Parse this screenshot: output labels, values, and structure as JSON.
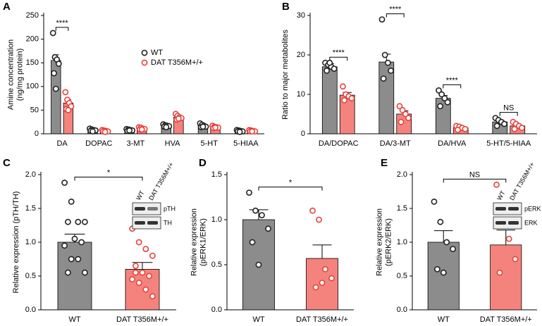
{
  "chart_data": [
    {
      "type": "bar",
      "panel": "A",
      "ylabel": [
        "Amine concentration",
        "(ng/mg protein)"
      ],
      "categories": [
        "DA",
        "DOPAC",
        "3-MT",
        "HVA",
        "5-HT",
        "5-HIAA"
      ],
      "series": [
        {
          "name": "WT",
          "color": "#8c8c8c",
          "values": [
            155,
            8,
            8,
            17,
            17,
            6
          ],
          "errors": [
            12,
            1,
            1,
            2,
            2,
            1
          ],
          "points": [
            [
              213,
              162,
              157,
              148,
              128,
              95
            ],
            [
              11,
              9,
              8,
              7,
              6,
              5
            ],
            [
              10,
              9,
              8,
              7,
              6,
              7
            ],
            [
              20,
              18,
              17,
              16,
              15,
              14
            ],
            [
              22,
              19,
              17,
              15,
              14,
              15
            ],
            [
              8,
              7,
              6,
              5,
              5,
              4
            ]
          ]
        },
        {
          "name": "DAT T356M+/+",
          "color": "#f4837d",
          "values": [
            65,
            6,
            11,
            35,
            14,
            6
          ],
          "errors": [
            7,
            1,
            1,
            3,
            1,
            1
          ],
          "points": [
            [
              88,
              72,
              65,
              58,
              52,
              50
            ],
            [
              8,
              7,
              6,
              5,
              5,
              4
            ],
            [
              14,
              13,
              11,
              10,
              9,
              9
            ],
            [
              42,
              38,
              35,
              33,
              30,
              32
            ],
            [
              17,
              15,
              14,
              13,
              12,
              13
            ],
            [
              8,
              7,
              6,
              5,
              5,
              5
            ]
          ]
        }
      ],
      "annotations": [
        "****"
      ],
      "ylim": [
        0,
        250
      ],
      "yticks": [
        0,
        50,
        100,
        150,
        200,
        250
      ],
      "legend": true
    },
    {
      "type": "bar",
      "panel": "B",
      "ylabel": [
        "Ratio to major metabolites"
      ],
      "categories": [
        "DA/DOPAC",
        "DA/3-MT",
        "DA/HVA",
        "5-HT/5-HIAA"
      ],
      "series": [
        {
          "name": "WT",
          "color": "#8c8c8c",
          "values": [
            17,
            18.2,
            9,
            3
          ],
          "errors": [
            0.8,
            2,
            0.7,
            0.4
          ],
          "points": [
            [
              18,
              17.5,
              17,
              16.5,
              16,
              18
            ],
            [
              29,
              20,
              18,
              16,
              14
            ],
            [
              11,
              10,
              9,
              8,
              7
            ],
            [
              4,
              3.5,
              3,
              2.5,
              2
            ]
          ]
        },
        {
          "name": "DAT T356M+/+",
          "color": "#f4837d",
          "values": [
            9.8,
            5,
            1.5,
            2
          ],
          "errors": [
            0.7,
            0.8,
            0.3,
            0.3
          ],
          "points": [
            [
              12,
              10,
              9.5,
              9,
              8.5
            ],
            [
              7,
              6,
              5,
              4,
              3
            ],
            [
              2,
              1.8,
              1.5,
              1.2,
              1
            ],
            [
              3,
              2.5,
              2,
              1.5,
              1.2
            ]
          ]
        }
      ],
      "annotations": [
        "****",
        "****",
        "****",
        "NS"
      ],
      "ylim": [
        0,
        30
      ],
      "yticks": [
        0,
        10,
        20,
        30
      ],
      "legend": false
    },
    {
      "type": "bar",
      "panel": "C",
      "ylabel": [
        "Relative expression (pTH/TH)"
      ],
      "categories": [
        "WT",
        "DAT T356M+/+"
      ],
      "colors": [
        "#8c8c8c",
        "#f4837d"
      ],
      "values": [
        1.0,
        0.6
      ],
      "errors": [
        0.12,
        0.1
      ],
      "points": [
        [
          1.88,
          1.6,
          1.3,
          1.3,
          1.3,
          1.05,
          1.0,
          0.95,
          0.75,
          0.75,
          0.55,
          0.55
        ],
        [
          1.2,
          1.0,
          0.9,
          0.8,
          0.65,
          0.55,
          0.5,
          0.45,
          0.4,
          0.3,
          0.2,
          0.55
        ]
      ],
      "annotations": [
        "*"
      ],
      "inset": {
        "columns": [
          "WT",
          "DAT T356M+/+"
        ],
        "rows": [
          "pTH",
          "TH"
        ]
      },
      "ylim": [
        0,
        2
      ],
      "yticks": [
        {
          "value": 0,
          "label": "0.0"
        },
        {
          "value": 0.5,
          "label": "0.5"
        },
        {
          "value": 1,
          "label": "1.0"
        },
        {
          "value": 1.5,
          "label": "1.5"
        },
        {
          "value": 2,
          "label": "2.0"
        }
      ]
    },
    {
      "type": "bar",
      "panel": "D",
      "ylabel": [
        "Relative expression",
        "(pERK1/ERK)"
      ],
      "categories": [
        "WT",
        "DAT T356M+/+"
      ],
      "colors": [
        "#8c8c8c",
        "#f4837d"
      ],
      "values": [
        1.0,
        0.57
      ],
      "errors": [
        0.11,
        0.15
      ],
      "points": [
        [
          1.3,
          1.1,
          1.05,
          0.9,
          0.75,
          0.5
        ],
        [
          1.1,
          1.0,
          0.45,
          0.35,
          0.25,
          0.3
        ]
      ],
      "annotations": [
        "*"
      ],
      "ylim": [
        0,
        1.5
      ],
      "yticks": [
        {
          "value": 0,
          "label": "0.0"
        },
        {
          "value": 0.5,
          "label": "0.5"
        },
        {
          "value": 1,
          "label": "1.0"
        },
        {
          "value": 1.5,
          "label": "1.5"
        }
      ]
    },
    {
      "type": "bar",
      "panel": "E",
      "ylabel": [
        "Relative expression",
        "(pERK2/ERK)"
      ],
      "categories": [
        "WT",
        "DAT T356M+/+"
      ],
      "colors": [
        "#8c8c8c",
        "#f4837d"
      ],
      "values": [
        1.0,
        0.96
      ],
      "errors": [
        0.17,
        0.22
      ],
      "points": [
        [
          1.6,
          1.3,
          1.0,
          0.9,
          0.6,
          0.55
        ],
        [
          1.85,
          1.3,
          1.05,
          0.75,
          0.55
        ]
      ],
      "annotations": [
        "NS"
      ],
      "inset": {
        "columns": [
          "WT",
          "DAT T356M+/+"
        ],
        "rows": [
          "pERK",
          "ERK"
        ]
      },
      "ylim": [
        0,
        2
      ],
      "yticks": [
        {
          "value": 0,
          "label": "0.0"
        },
        {
          "value": 0.5,
          "label": "0.5"
        },
        {
          "value": 1,
          "label": "1.0"
        },
        {
          "value": 1.5,
          "label": "1.5"
        },
        {
          "value": 2,
          "label": "2.0"
        }
      ]
    }
  ]
}
